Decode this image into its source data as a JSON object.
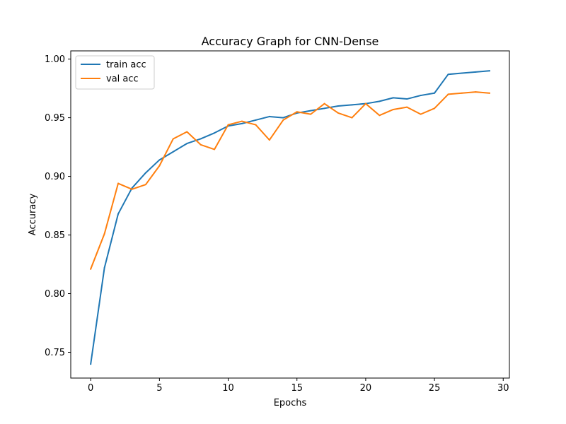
{
  "chart_data": {
    "type": "line",
    "title": "Accuracy Graph for CNN-Dense",
    "xlabel": "Epochs",
    "ylabel": "Accuracy",
    "xlim": [
      -1.45,
      30.45
    ],
    "ylim": [
      0.728,
      1.007
    ],
    "xticks": [
      0,
      5,
      10,
      15,
      20,
      25,
      30
    ],
    "xtick_labels": [
      "0",
      "5",
      "10",
      "15",
      "20",
      "25",
      "30"
    ],
    "yticks": [
      0.75,
      0.8,
      0.85,
      0.9,
      0.95,
      1.0
    ],
    "ytick_labels": [
      "0.75",
      "0.80",
      "0.85",
      "0.90",
      "0.95",
      "1.00"
    ],
    "grid": false,
    "legend_position": "upper-left",
    "x": [
      0,
      1,
      2,
      3,
      4,
      5,
      6,
      7,
      8,
      9,
      10,
      11,
      12,
      13,
      14,
      15,
      16,
      17,
      18,
      19,
      20,
      21,
      22,
      23,
      24,
      25,
      26,
      27,
      28,
      29
    ],
    "series": [
      {
        "name": "train acc",
        "color": "#1f77b4",
        "values": [
          0.74,
          0.822,
          0.868,
          0.89,
          0.903,
          0.914,
          0.921,
          0.928,
          0.932,
          0.937,
          0.943,
          0.945,
          0.948,
          0.951,
          0.95,
          0.954,
          0.956,
          0.958,
          0.96,
          0.961,
          0.962,
          0.964,
          0.967,
          0.966,
          0.969,
          0.971,
          0.987,
          0.988,
          0.989,
          0.99
        ]
      },
      {
        "name": "val acc",
        "color": "#ff7f0e",
        "values": [
          0.821,
          0.851,
          0.894,
          0.889,
          0.893,
          0.909,
          0.932,
          0.938,
          0.927,
          0.923,
          0.944,
          0.947,
          0.944,
          0.931,
          0.948,
          0.955,
          0.953,
          0.962,
          0.954,
          0.95,
          0.962,
          0.952,
          0.957,
          0.959,
          0.953,
          0.958,
          0.97,
          0.971,
          0.972,
          0.971
        ]
      }
    ]
  }
}
